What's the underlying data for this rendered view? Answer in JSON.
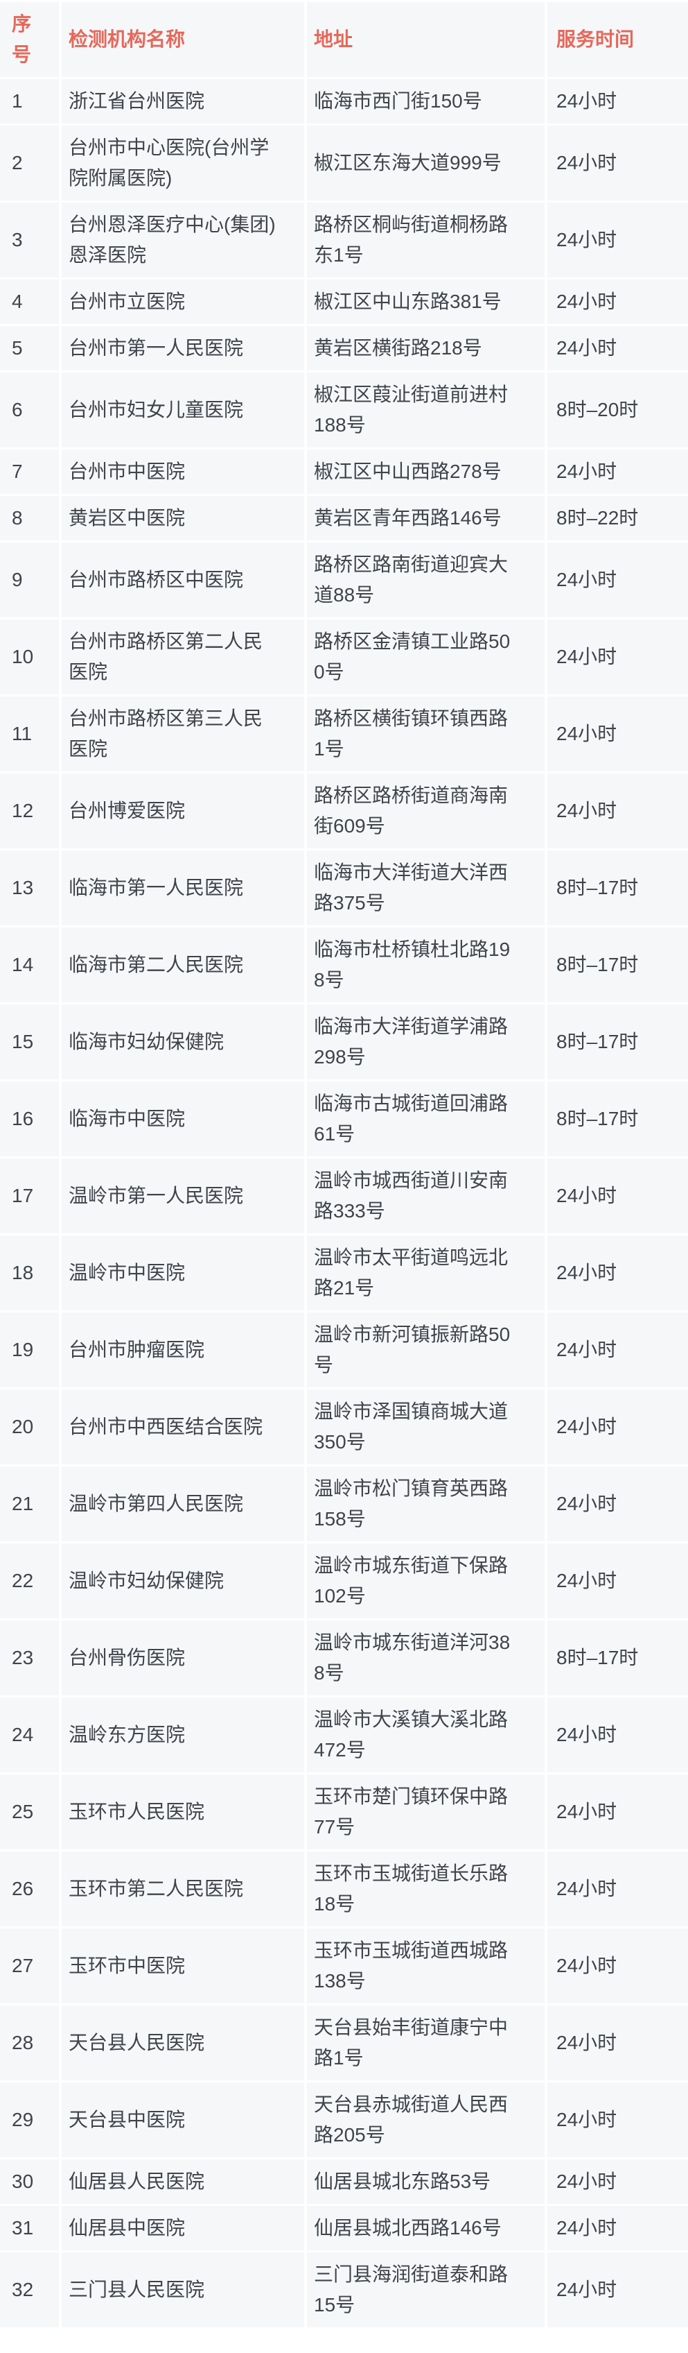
{
  "colors": {
    "header_text": "#e5685a",
    "body_text": "#3f444b",
    "cell_bg": "#f6f7f9",
    "gap_color": "#ffffff"
  },
  "table": {
    "columns": [
      {
        "key": "index",
        "label": "序号"
      },
      {
        "key": "name",
        "label": "检测机构名称"
      },
      {
        "key": "address",
        "label": "地址"
      },
      {
        "key": "hours",
        "label": "服务时间"
      }
    ],
    "rows": [
      {
        "index": "1",
        "name": "浙江省台州医院",
        "address": "临海市西门街150号",
        "hours": "24小时"
      },
      {
        "index": "2",
        "name": "台州市中心医院(台州学院附属医院)",
        "address": "椒江区东海大道999号",
        "hours": "24小时"
      },
      {
        "index": "3",
        "name": "台州恩泽医疗中心(集团)恩泽医院",
        "address": "路桥区桐屿街道桐杨路东1号",
        "hours": "24小时"
      },
      {
        "index": "4",
        "name": "台州市立医院",
        "address": "椒江区中山东路381号",
        "hours": "24小时"
      },
      {
        "index": "5",
        "name": "台州市第一人民医院",
        "address": "黄岩区横街路218号",
        "hours": "24小时"
      },
      {
        "index": "6",
        "name": "台州市妇女儿童医院",
        "address": "椒江区葭沚街道前进村188号",
        "hours": "8时–20时"
      },
      {
        "index": "7",
        "name": "台州市中医院",
        "address": "椒江区中山西路278号",
        "hours": "24小时"
      },
      {
        "index": "8",
        "name": "黄岩区中医院",
        "address": "黄岩区青年西路146号",
        "hours": "8时–22时"
      },
      {
        "index": "9",
        "name": "台州市路桥区中医院",
        "address": "路桥区路南街道迎宾大道88号",
        "hours": "24小时"
      },
      {
        "index": "10",
        "name": "台州市路桥区第二人民医院",
        "address": "路桥区金清镇工业路500号",
        "hours": "24小时"
      },
      {
        "index": "11",
        "name": "台州市路桥区第三人民医院",
        "address": "路桥区横街镇环镇西路1号",
        "hours": "24小时"
      },
      {
        "index": "12",
        "name": "台州博爱医院",
        "address": "路桥区路桥街道商海南街609号",
        "hours": "24小时"
      },
      {
        "index": "13",
        "name": "临海市第一人民医院",
        "address": "临海市大洋街道大洋西路375号",
        "hours": "8时–17时"
      },
      {
        "index": "14",
        "name": "临海市第二人民医院",
        "address": "临海市杜桥镇杜北路198号",
        "hours": "8时–17时"
      },
      {
        "index": "15",
        "name": "临海市妇幼保健院",
        "address": "临海市大洋街道学浦路298号",
        "hours": "8时–17时"
      },
      {
        "index": "16",
        "name": "临海市中医院",
        "address": "临海市古城街道回浦路61号",
        "hours": "8时–17时"
      },
      {
        "index": "17",
        "name": "温岭市第一人民医院",
        "address": "温岭市城西街道川安南路333号",
        "hours": "24小时"
      },
      {
        "index": "18",
        "name": "温岭市中医院",
        "address": "温岭市太平街道鸣远北路21号",
        "hours": "24小时"
      },
      {
        "index": "19",
        "name": "台州市肿瘤医院",
        "address": "温岭市新河镇振新路50号",
        "hours": "24小时"
      },
      {
        "index": "20",
        "name": "台州市中西医结合医院",
        "address": "温岭市泽国镇商城大道350号",
        "hours": "24小时"
      },
      {
        "index": "21",
        "name": "温岭市第四人民医院",
        "address": "温岭市松门镇育英西路158号",
        "hours": "24小时"
      },
      {
        "index": "22",
        "name": "温岭市妇幼保健院",
        "address": "温岭市城东街道下保路102号",
        "hours": "24小时"
      },
      {
        "index": "23",
        "name": "台州骨伤医院",
        "address": "温岭市城东街道洋河388号",
        "hours": "8时–17时"
      },
      {
        "index": "24",
        "name": "温岭东方医院",
        "address": "温岭市大溪镇大溪北路472号",
        "hours": "24小时"
      },
      {
        "index": "25",
        "name": "玉环市人民医院",
        "address": "玉环市楚门镇环保中路77号",
        "hours": "24小时"
      },
      {
        "index": "26",
        "name": "玉环市第二人民医院",
        "address": "玉环市玉城街道长乐路18号",
        "hours": "24小时"
      },
      {
        "index": "27",
        "name": "玉环市中医院",
        "address": "玉环市玉城街道西城路138号",
        "hours": "24小时"
      },
      {
        "index": "28",
        "name": "天台县人民医院",
        "address": "天台县始丰街道康宁中路1号",
        "hours": "24小时"
      },
      {
        "index": "29",
        "name": "天台县中医院",
        "address": "天台县赤城街道人民西路205号",
        "hours": "24小时"
      },
      {
        "index": "30",
        "name": "仙居县人民医院",
        "address": "仙居县城北东路53号",
        "hours": "24小时"
      },
      {
        "index": "31",
        "name": "仙居县中医院",
        "address": "仙居县城北西路146号",
        "hours": "24小时"
      },
      {
        "index": "32",
        "name": "三门县人民医院",
        "address": "三门县海润街道泰和路15号",
        "hours": "24小时"
      }
    ]
  }
}
